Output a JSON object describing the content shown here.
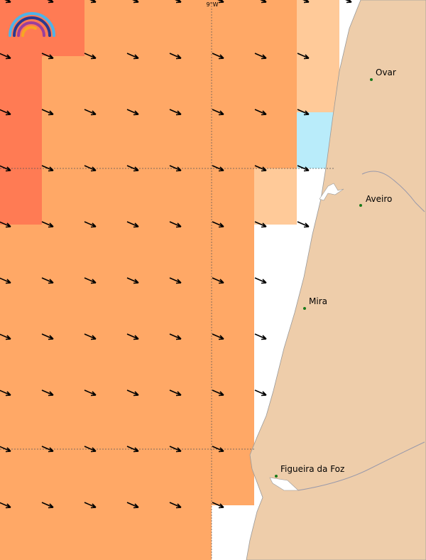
{
  "grid_label": "9°W",
  "cities": [
    {
      "name": "Ovar"
    },
    {
      "name": "Aveiro"
    },
    {
      "name": "Mira"
    },
    {
      "name": "Figueira da Foz"
    }
  ]
}
